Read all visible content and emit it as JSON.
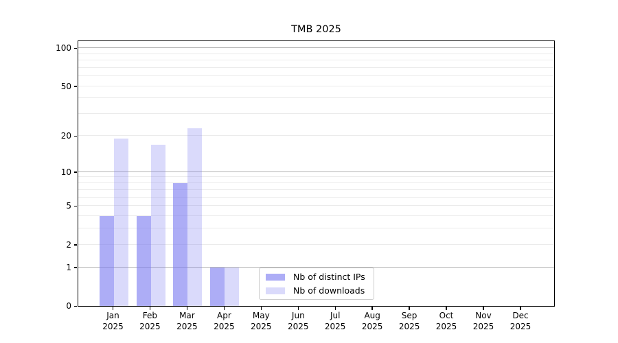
{
  "chart_data": {
    "type": "bar",
    "title": "TMB 2025",
    "x_labels": [
      {
        "month": "Jan",
        "year": "2025"
      },
      {
        "month": "Feb",
        "year": "2025"
      },
      {
        "month": "Mar",
        "year": "2025"
      },
      {
        "month": "Apr",
        "year": "2025"
      },
      {
        "month": "May",
        "year": "2025"
      },
      {
        "month": "Jun",
        "year": "2025"
      },
      {
        "month": "Jul",
        "year": "2025"
      },
      {
        "month": "Aug",
        "year": "2025"
      },
      {
        "month": "Sep",
        "year": "2025"
      },
      {
        "month": "Oct",
        "year": "2025"
      },
      {
        "month": "Nov",
        "year": "2025"
      },
      {
        "month": "Dec",
        "year": "2025"
      }
    ],
    "series": [
      {
        "name": "Nb of distinct IPs",
        "color": "#7b7bf09e",
        "values": [
          4,
          4,
          8,
          1,
          0,
          0,
          0,
          0,
          0,
          0,
          0,
          0
        ]
      },
      {
        "name": "Nb of downloads",
        "color": "#7b7bf047",
        "values": [
          19,
          17,
          23,
          1,
          0,
          0,
          0,
          0,
          0,
          0,
          0,
          0
        ]
      }
    ],
    "y_axis": {
      "scale": "log10(1+x)",
      "labeled_ticks": [
        0,
        1,
        2,
        5,
        10,
        20,
        50,
        100
      ],
      "major_gridlines": [
        1,
        10,
        100
      ],
      "minor_gridlines": [
        2,
        3,
        4,
        5,
        6,
        7,
        8,
        9,
        20,
        30,
        40,
        50,
        60,
        70,
        80,
        90
      ],
      "ylim": [
        0,
        115
      ]
    },
    "legend": {
      "position": "lower-center-inside"
    },
    "grid": true,
    "style": {
      "major_grid_color": "#b2b2b2",
      "minor_grid_color": "#ebebeb",
      "spine_color": "#000000",
      "text_color": "#000000",
      "background": "#ffffff"
    }
  }
}
